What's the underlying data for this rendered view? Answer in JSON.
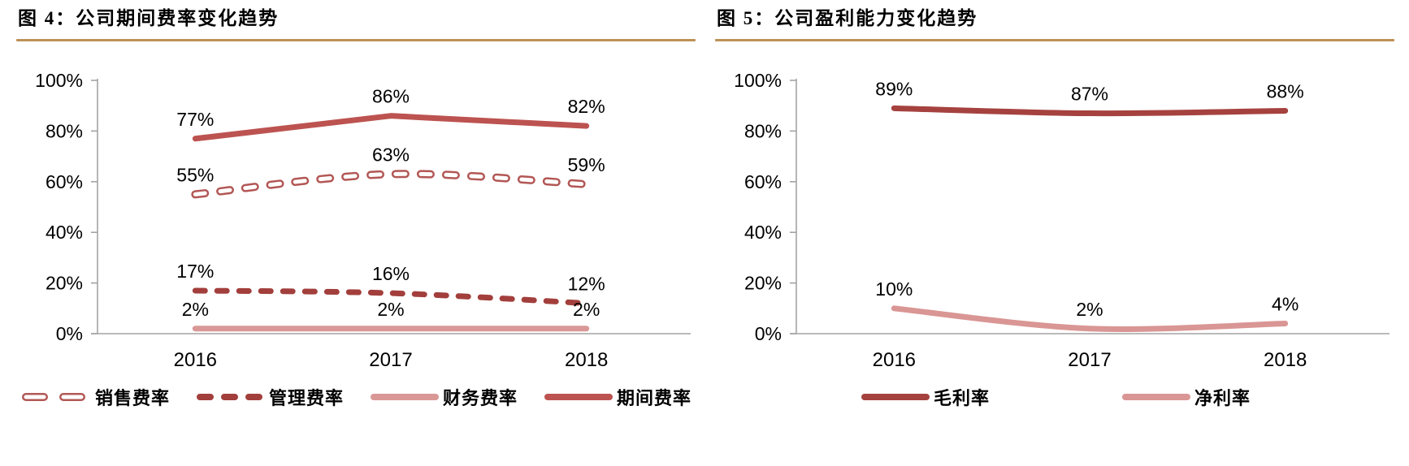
{
  "page": {
    "background": "#ffffff"
  },
  "colors": {
    "title_text": "#000000",
    "title_rule": "#bd9156",
    "axis": "#a3a3a3",
    "label_text": "#000000"
  },
  "chart_data": [
    {
      "type": "line",
      "title": "图 4：公司期间费率变化趋势",
      "categories": [
        "2016",
        "2017",
        "2018"
      ],
      "xlabel": "",
      "ylabel": "",
      "ylim": [
        0,
        100
      ],
      "grid": false,
      "legend_position": "bottom",
      "yticks": [
        {
          "label": "100%",
          "value": 100
        },
        {
          "label": "80%",
          "value": 80
        },
        {
          "label": "60%",
          "value": 60
        },
        {
          "label": "40%",
          "value": 40
        },
        {
          "label": "20%",
          "value": 20
        },
        {
          "label": "0%",
          "value": 0
        }
      ],
      "series": [
        {
          "name": "销售费率",
          "values": [
            55,
            63,
            59
          ],
          "point_labels": [
            "55%",
            "63%",
            "59%"
          ],
          "color": "#b25755",
          "line_style": "hollow-dash",
          "smooth": true
        },
        {
          "name": "管理费率",
          "values": [
            17,
            16,
            12
          ],
          "point_labels": [
            "17%",
            "16%",
            "12%"
          ],
          "color": "#a23f3c",
          "line_style": "dash",
          "smooth": true
        },
        {
          "name": "财务费率",
          "values": [
            2,
            2,
            2
          ],
          "point_labels": [
            "2%",
            "2%",
            "2%"
          ],
          "color": "#d99896",
          "line_style": "solid",
          "smooth": false
        },
        {
          "name": "期间费率",
          "values": [
            77,
            86,
            82
          ],
          "point_labels": [
            "77%",
            "86%",
            "82%"
          ],
          "color": "#bc5350",
          "line_style": "solid",
          "smooth": false
        }
      ]
    },
    {
      "type": "line",
      "title": "图 5：公司盈利能力变化趋势",
      "categories": [
        "2016",
        "2017",
        "2018"
      ],
      "xlabel": "",
      "ylabel": "",
      "ylim": [
        0,
        100
      ],
      "grid": false,
      "legend_position": "bottom",
      "yticks": [
        {
          "label": "100%",
          "value": 100
        },
        {
          "label": "80%",
          "value": 80
        },
        {
          "label": "60%",
          "value": 60
        },
        {
          "label": "40%",
          "value": 40
        },
        {
          "label": "20%",
          "value": 20
        },
        {
          "label": "0%",
          "value": 0
        }
      ],
      "series": [
        {
          "name": "毛利率",
          "values": [
            89,
            87,
            88
          ],
          "point_labels": [
            "89%",
            "87%",
            "88%"
          ],
          "color": "#a5423f",
          "line_style": "solid",
          "smooth": true
        },
        {
          "name": "净利率",
          "values": [
            10,
            2,
            4
          ],
          "point_labels": [
            "10%",
            "2%",
            "4%"
          ],
          "color": "#d99694",
          "line_style": "solid",
          "smooth": true
        }
      ]
    }
  ]
}
